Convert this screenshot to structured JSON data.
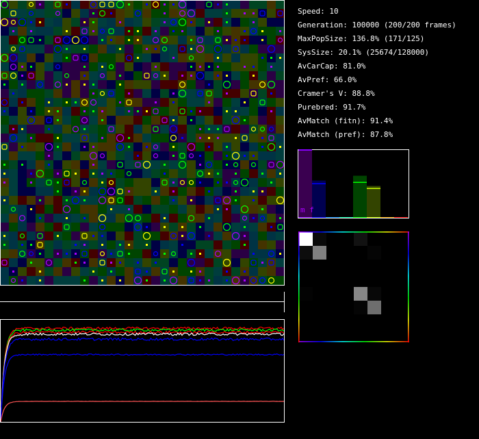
{
  "stats": {
    "speed": "Speed: 10",
    "generation": "Generation: 100000 (200/200 frames)",
    "max_pop_size": "MaxPopSize: 136.8% (171/125)",
    "sys_size": "SysSize: 20.1% (25674/128000)",
    "av_car_cap": "AvCarCap: 81.0%",
    "av_pref": "AvPref: 66.0%",
    "cramers_v": "Cramer's V: 88.8%",
    "purebred": "Purebred: 91.7%",
    "av_match_fitn": "AvMatch (fitn): 91.4%",
    "av_match_pref": "AvMatch (pref): 87.8%"
  },
  "world": {
    "cols": 32,
    "rows": 32,
    "cell_colors": [
      "#004400",
      "#443300",
      "#003d3d",
      "#440000",
      "#000044",
      "#2a0044",
      "#334400",
      "#004422",
      "#003344"
    ],
    "marker_colors": [
      "#aa00ff",
      "#0000ff",
      "#00ff00",
      "#ffff00"
    ]
  },
  "histogram": {
    "bin_colors": [
      "#8800ff",
      "#0000ff",
      "#0088ff",
      "#00ffaa",
      "#00ff00",
      "#ccff00",
      "#ffaa00",
      "#ff0000"
    ],
    "fill_colors": [
      "#3a0050",
      "#000050",
      "#002040",
      "#003030",
      "#004400",
      "#334400",
      "#442200",
      "#440000"
    ],
    "values": [
      1.0,
      0.55,
      0,
      0,
      0.62,
      0.47,
      0,
      0
    ],
    "markers": [
      null,
      0.51,
      null,
      null,
      0.53,
      0.44,
      null,
      null
    ],
    "label": "m f"
  },
  "matrix": {
    "values": [
      [
        1.0,
        0.04,
        0,
        0,
        0.07,
        0,
        0,
        0
      ],
      [
        0.05,
        0.5,
        0,
        0,
        0,
        0.02,
        0,
        0
      ],
      [
        0,
        0,
        0,
        0,
        0,
        0,
        0,
        0
      ],
      [
        0,
        0,
        0,
        0,
        0,
        0,
        0,
        0
      ],
      [
        0.01,
        0,
        0,
        0,
        0.53,
        0.03,
        0,
        0
      ],
      [
        0,
        0,
        0,
        0,
        0.02,
        0.43,
        0,
        0
      ],
      [
        0,
        0,
        0,
        0,
        0,
        0,
        0,
        0
      ],
      [
        0,
        0,
        0,
        0,
        0,
        0,
        0,
        0
      ]
    ]
  },
  "chart_data": {
    "type": "line",
    "x_range": [
      0,
      200
    ],
    "y_range": [
      0,
      1
    ],
    "series": [
      {
        "color": "#ff0000",
        "final": 0.917
      },
      {
        "color": "#00ff00",
        "final": 0.9
      },
      {
        "color": "#ff0000",
        "final": 0.878
      },
      {
        "color": "#ffffff",
        "final": 0.86
      },
      {
        "color": "#0000ff",
        "final": 0.81
      },
      {
        "color": "#0000ff",
        "final": 0.66
      },
      {
        "color": "#ff5555",
        "final": 0.201
      }
    ]
  }
}
